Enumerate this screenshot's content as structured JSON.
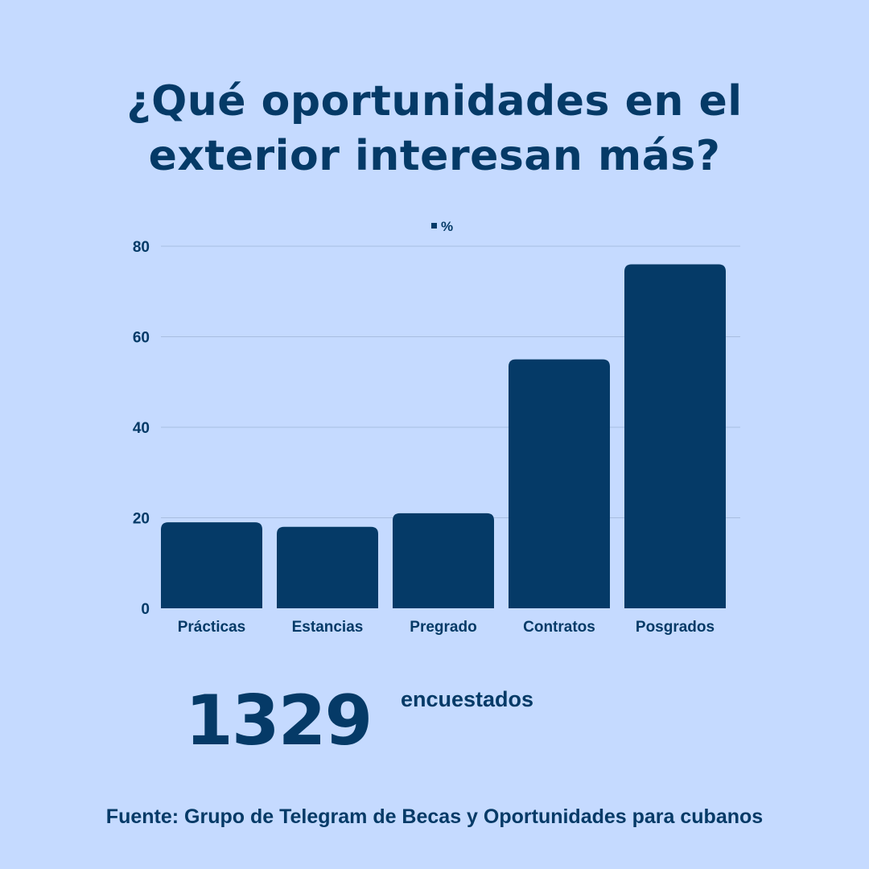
{
  "title_lines": [
    "¿Qué oportunidades en el",
    "exterior interesan más?"
  ],
  "chart_data": {
    "type": "bar",
    "categories": [
      "Prácticas",
      "Estancias",
      "Pregrado",
      "Contratos",
      "Posgrados"
    ],
    "series": [
      {
        "name": "%",
        "values": [
          19,
          18,
          21,
          55,
          76
        ]
      }
    ],
    "ylim": [
      0,
      80
    ],
    "yticks": [
      0,
      20,
      40,
      60,
      80
    ],
    "grid": true,
    "legend": "top-center",
    "bar_color": "#053a67",
    "grid_color": "#a8bde0"
  },
  "respondents": {
    "count": "1329",
    "label": "encuestados"
  },
  "source": "Fuente: Grupo de Telegram de Becas y Oportunidades para cubanos"
}
